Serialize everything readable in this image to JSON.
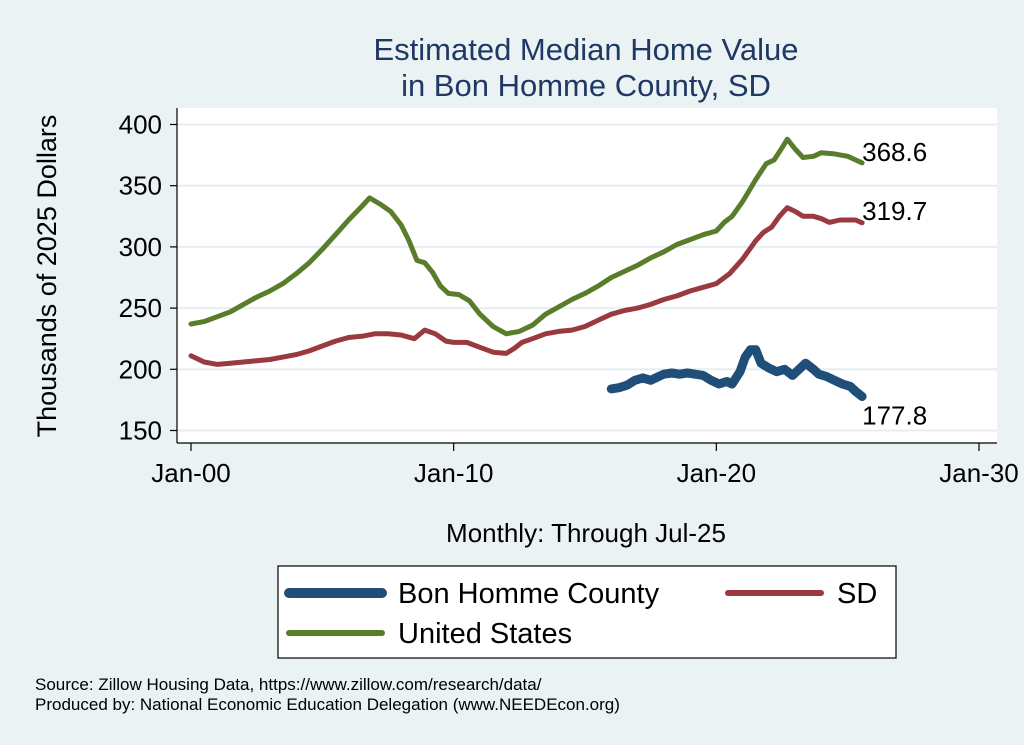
{
  "chart_data": {
    "type": "line",
    "title": [
      "Estimated Median Home Value",
      "in Bon Homme County, SD"
    ],
    "xlabel": "Monthly: Through Jul-25",
    "ylabel": "Thousands of 2025 Dollars",
    "x_range": [
      2000,
      2030
    ],
    "ylim": [
      140,
      410
    ],
    "x_ticks": [
      {
        "value": 2000,
        "label": "Jan-00"
      },
      {
        "value": 2010,
        "label": "Jan-10"
      },
      {
        "value": 2020,
        "label": "Jan-20"
      },
      {
        "value": 2030,
        "label": "Jan-30"
      }
    ],
    "y_ticks": [
      {
        "value": 150,
        "label": "150"
      },
      {
        "value": 200,
        "label": "200"
      },
      {
        "value": 250,
        "label": "250"
      },
      {
        "value": 300,
        "label": "300"
      },
      {
        "value": 350,
        "label": "350"
      },
      {
        "value": 400,
        "label": "400"
      }
    ],
    "grid": true,
    "legend_placement": "bottom",
    "series": [
      {
        "name": "United States",
        "color": "#5a7d2c",
        "end_label": "368.6",
        "points": [
          [
            2000.0,
            237
          ],
          [
            2000.5,
            239
          ],
          [
            2001.0,
            243
          ],
          [
            2001.5,
            247
          ],
          [
            2002.0,
            253
          ],
          [
            2002.5,
            259
          ],
          [
            2003.0,
            264
          ],
          [
            2003.5,
            270
          ],
          [
            2004.0,
            278
          ],
          [
            2004.5,
            287
          ],
          [
            2005.0,
            298
          ],
          [
            2005.5,
            310
          ],
          [
            2006.0,
            322
          ],
          [
            2006.5,
            333
          ],
          [
            2006.8,
            340
          ],
          [
            2007.2,
            335
          ],
          [
            2007.6,
            329
          ],
          [
            2008.0,
            318
          ],
          [
            2008.3,
            305
          ],
          [
            2008.6,
            289
          ],
          [
            2008.9,
            287
          ],
          [
            2009.2,
            279
          ],
          [
            2009.5,
            268
          ],
          [
            2009.8,
            262
          ],
          [
            2010.2,
            261
          ],
          [
            2010.6,
            256
          ],
          [
            2011.0,
            245
          ],
          [
            2011.5,
            235
          ],
          [
            2012.0,
            229
          ],
          [
            2012.5,
            231
          ],
          [
            2013.0,
            236
          ],
          [
            2013.5,
            245
          ],
          [
            2014.0,
            251
          ],
          [
            2014.5,
            257
          ],
          [
            2015.0,
            262
          ],
          [
            2015.5,
            268
          ],
          [
            2016.0,
            275
          ],
          [
            2016.5,
            280
          ],
          [
            2017.0,
            285
          ],
          [
            2017.5,
            291
          ],
          [
            2018.0,
            296
          ],
          [
            2018.5,
            302
          ],
          [
            2019.0,
            306
          ],
          [
            2019.5,
            310
          ],
          [
            2020.0,
            313
          ],
          [
            2020.3,
            320
          ],
          [
            2020.6,
            325
          ],
          [
            2021.0,
            337
          ],
          [
            2021.5,
            355
          ],
          [
            2021.9,
            368
          ],
          [
            2022.2,
            371
          ],
          [
            2022.5,
            381
          ],
          [
            2022.7,
            388
          ],
          [
            2023.0,
            380
          ],
          [
            2023.3,
            373
          ],
          [
            2023.7,
            374
          ],
          [
            2024.0,
            377
          ],
          [
            2024.5,
            376
          ],
          [
            2025.0,
            374
          ],
          [
            2025.55,
            368.6
          ]
        ]
      },
      {
        "name": "SD",
        "color": "#9a3a3f",
        "end_label": "319.7",
        "points": [
          [
            2000.0,
            211
          ],
          [
            2000.5,
            206
          ],
          [
            2001.0,
            204
          ],
          [
            2001.5,
            205
          ],
          [
            2002.0,
            206
          ],
          [
            2002.5,
            207
          ],
          [
            2003.0,
            208
          ],
          [
            2003.5,
            210
          ],
          [
            2004.0,
            212
          ],
          [
            2004.5,
            215
          ],
          [
            2005.0,
            219
          ],
          [
            2005.5,
            223
          ],
          [
            2006.0,
            226
          ],
          [
            2006.5,
            227
          ],
          [
            2007.0,
            229
          ],
          [
            2007.5,
            229
          ],
          [
            2008.0,
            228
          ],
          [
            2008.5,
            225
          ],
          [
            2008.9,
            232
          ],
          [
            2009.3,
            229
          ],
          [
            2009.7,
            223
          ],
          [
            2010.0,
            222
          ],
          [
            2010.5,
            222
          ],
          [
            2011.0,
            218
          ],
          [
            2011.5,
            214
          ],
          [
            2012.0,
            213
          ],
          [
            2012.3,
            217
          ],
          [
            2012.6,
            222
          ],
          [
            2013.0,
            225
          ],
          [
            2013.5,
            229
          ],
          [
            2014.0,
            231
          ],
          [
            2014.5,
            232
          ],
          [
            2015.0,
            235
          ],
          [
            2015.5,
            240
          ],
          [
            2016.0,
            245
          ],
          [
            2016.5,
            248
          ],
          [
            2017.0,
            250
          ],
          [
            2017.5,
            253
          ],
          [
            2018.0,
            257
          ],
          [
            2018.5,
            260
          ],
          [
            2019.0,
            264
          ],
          [
            2019.5,
            267
          ],
          [
            2020.0,
            270
          ],
          [
            2020.5,
            278
          ],
          [
            2021.0,
            290
          ],
          [
            2021.5,
            305
          ],
          [
            2021.8,
            312
          ],
          [
            2022.1,
            316
          ],
          [
            2022.4,
            325
          ],
          [
            2022.7,
            332
          ],
          [
            2023.0,
            329
          ],
          [
            2023.3,
            325
          ],
          [
            2023.7,
            325
          ],
          [
            2024.0,
            323
          ],
          [
            2024.3,
            320
          ],
          [
            2024.7,
            322
          ],
          [
            2025.0,
            322
          ],
          [
            2025.3,
            322
          ],
          [
            2025.55,
            319.7
          ]
        ]
      },
      {
        "name": "Bon Homme County",
        "color": "#1f4e79",
        "end_label": "177.8",
        "points": [
          [
            2016.0,
            184
          ],
          [
            2016.3,
            185
          ],
          [
            2016.6,
            187
          ],
          [
            2016.9,
            191
          ],
          [
            2017.2,
            193
          ],
          [
            2017.5,
            191
          ],
          [
            2017.8,
            194
          ],
          [
            2018.0,
            196
          ],
          [
            2018.3,
            197
          ],
          [
            2018.6,
            196
          ],
          [
            2018.9,
            197
          ],
          [
            2019.2,
            196
          ],
          [
            2019.5,
            195
          ],
          [
            2019.8,
            191
          ],
          [
            2020.1,
            188
          ],
          [
            2020.4,
            190
          ],
          [
            2020.6,
            188
          ],
          [
            2020.9,
            198
          ],
          [
            2021.1,
            210
          ],
          [
            2021.3,
            216
          ],
          [
            2021.5,
            216
          ],
          [
            2021.7,
            205
          ],
          [
            2022.0,
            201
          ],
          [
            2022.3,
            198
          ],
          [
            2022.6,
            200
          ],
          [
            2022.9,
            195
          ],
          [
            2023.1,
            199
          ],
          [
            2023.4,
            205
          ],
          [
            2023.7,
            200
          ],
          [
            2023.9,
            196
          ],
          [
            2024.2,
            194
          ],
          [
            2024.5,
            191
          ],
          [
            2024.8,
            188
          ],
          [
            2025.1,
            186
          ],
          [
            2025.3,
            182
          ],
          [
            2025.55,
            177.8
          ]
        ]
      }
    ],
    "legend": [
      {
        "name": "Bon Homme County",
        "color": "#1f4e79"
      },
      {
        "name": "SD",
        "color": "#9a3a3f"
      },
      {
        "name": "United States",
        "color": "#5a7d2c"
      }
    ]
  },
  "footer": {
    "source": "Source: Zillow Housing Data, https://www.zillow.com/research/data/",
    "produced_by": "Produced by: National Economic Education Delegation (www.NEEDEcon.org)"
  }
}
